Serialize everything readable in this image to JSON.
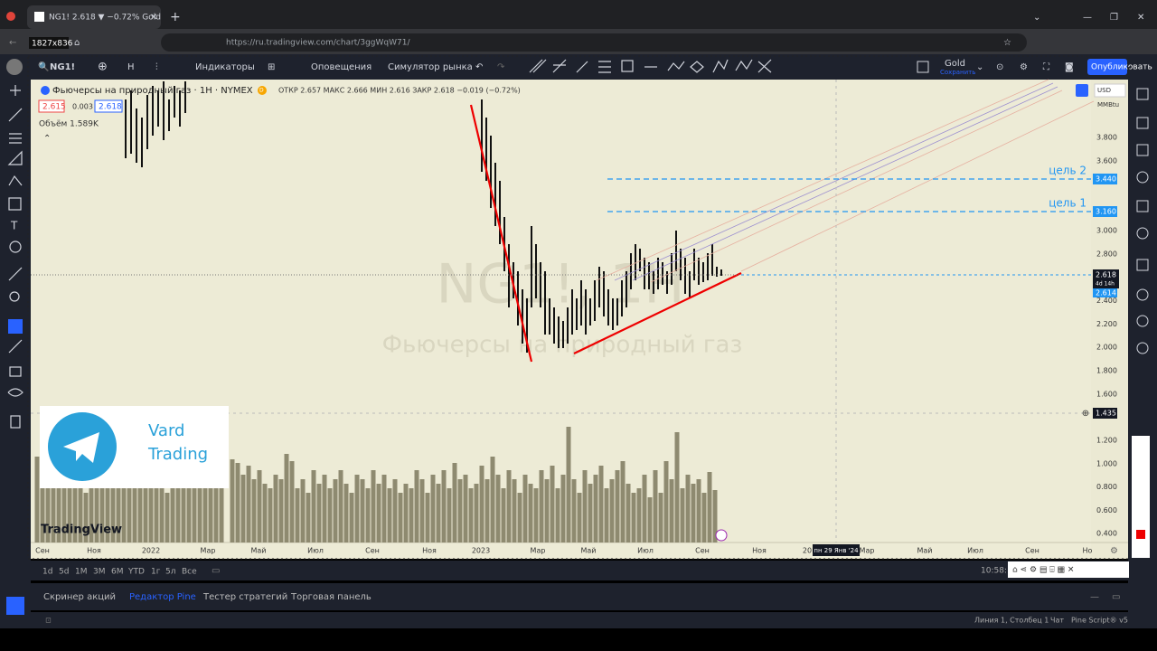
{
  "browser": {
    "tab_title": "NG1! 2.618 ▼ −0.72% Gold",
    "resolution_badge": "1827x836",
    "url": "https://ru.tradingview.com/chart/3ggWqW71/"
  },
  "toolbar": {
    "symbol": "NG1!",
    "interval": "H",
    "indicators": "Индикаторы",
    "alerts": "Оповещения",
    "replay": "Симулятор рынка",
    "layout_name": "Gold",
    "save": "Сохранить",
    "publish": "Опубликовать"
  },
  "legend": {
    "instrument": "Фьючерсы на природный газ · 1Н · NYMEX",
    "badge": "D",
    "ohlc": "ОТКР 2.657 МАКС 2.666 МИН 2.616 ЗАКР 2.618 −0.019 (−0.72%)",
    "bid": "2.615",
    "spread": "0.003",
    "ask": "2.618",
    "volume": "Объём 1.589K"
  },
  "watermark": {
    "symbol": "NG1!, 1Н",
    "description": "Фьючерсы на природный газ"
  },
  "price_axis": {
    "currency": "USD",
    "unit": "MMBtu",
    "labels": [
      "3.800",
      "3.600",
      "3.000",
      "2.800",
      "2.400",
      "2.200",
      "2.000",
      "1.800",
      "1.600"
    ],
    "volume_labels": [
      "1.200",
      "1.000",
      "0.800",
      "0.600",
      "0.400"
    ],
    "target_2_price": "3.440",
    "target_1_price": "3.160",
    "last_price": "2.618",
    "countdown": "4d 14h",
    "bid_price": "2.614",
    "crosshair_price": "1.435"
  },
  "annotations": {
    "target_2": "цель 2",
    "target_1": "цель 1"
  },
  "time_axis": {
    "labels": [
      "Сен",
      "Ноя",
      "2022",
      "Мар",
      "Май",
      "Июл",
      "Сен",
      "Ноя",
      "2023",
      "Мар",
      "Май",
      "Июл",
      "Сен",
      "Ноя",
      "20",
      "Мар",
      "Май",
      "Июл",
      "Сен",
      "Но"
    ],
    "crosshair_date": "пн 29 Янв '24"
  },
  "promo": {
    "line1": "Vard",
    "line2": "Trading"
  },
  "logo": "TradingView",
  "ranges": [
    "1d",
    "5d",
    "1M",
    "3M",
    "6M",
    "YTD",
    "1г",
    "5л",
    "Все"
  ],
  "clock": "10:58:",
  "panel_tabs": [
    "Скринер акций",
    "Редактор Pine",
    "Тестер стратегий",
    "Торговая панель"
  ],
  "status": {
    "position": "Линия 1, Столбец 1",
    "chat": "Чат",
    "version": "Pine Script® v5"
  }
}
